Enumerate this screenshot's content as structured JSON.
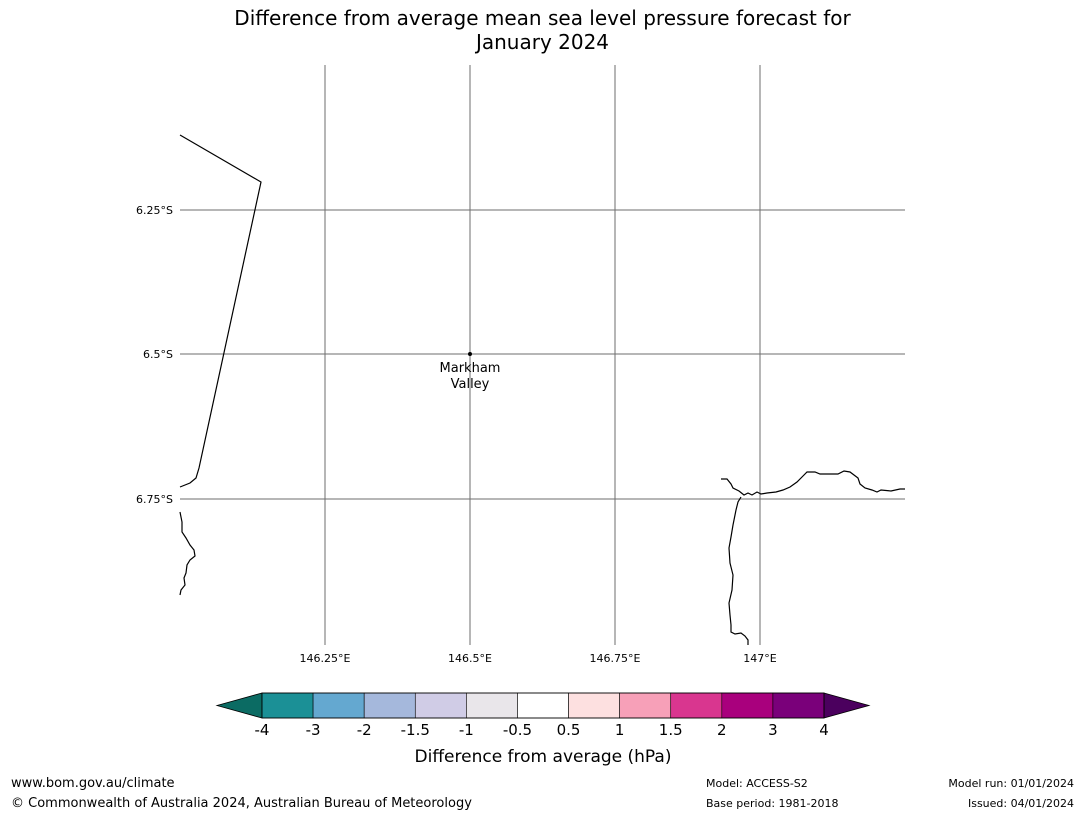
{
  "title": {
    "line1": "Difference from average mean sea level pressure forecast for",
    "line2": "January 2024"
  },
  "map": {
    "lat_ticks": [
      "6.25°S",
      "6.5°S",
      "6.75°S"
    ],
    "lon_ticks": [
      "146.25°E",
      "146.5°E",
      "146.75°E",
      "147°E"
    ],
    "place": {
      "name_line1": "Markham",
      "name_line2": "Valley",
      "lon": 146.5,
      "lat": -6.5
    },
    "gridlines": true
  },
  "colorbar": {
    "label": "Difference from average (hPa)",
    "ticks": [
      "-4",
      "-3",
      "-2",
      "-1.5",
      "-1",
      "-0.5",
      "0.5",
      "1",
      "1.5",
      "2",
      "3",
      "4"
    ],
    "colors": [
      "#1b9096",
      "#64a8d0",
      "#a5b8dc",
      "#d0cce6",
      "#e9e6ea",
      "#ffffff",
      "#fde0e0",
      "#f7a0b8",
      "#d9368f",
      "#a9007d",
      "#7a007a"
    ],
    "under_color": "#0b6b63",
    "over_color": "#4b005e"
  },
  "footer": {
    "website": "www.bom.gov.au/climate",
    "copyright": "© Commonwealth of Australia 2024, Australian Bureau of Meteorology",
    "model": "Model: ACCESS-S2",
    "base_period": "Base period: 1981-2018",
    "model_run": "Model run: 01/01/2024",
    "issued": "Issued: 04/01/2024"
  }
}
